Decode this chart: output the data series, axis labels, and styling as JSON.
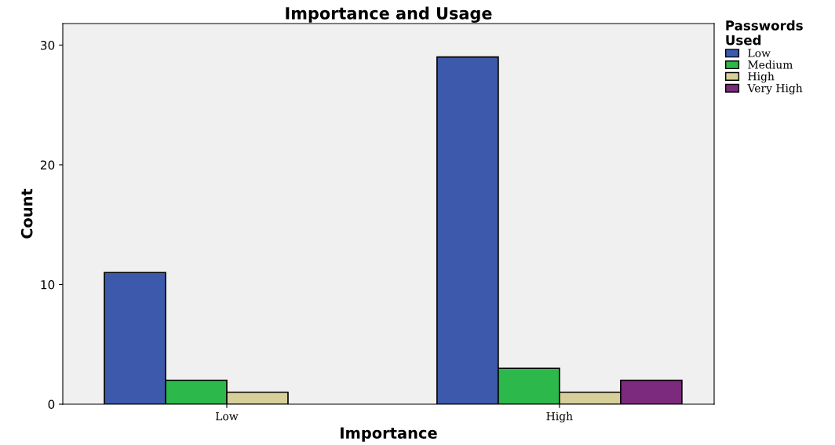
{
  "chart_data": {
    "type": "bar",
    "title": "Importance and Usage",
    "xlabel": "Importance",
    "ylabel": "Count",
    "legend_title": "Passwords\nUsed",
    "categories": [
      "Low",
      "High"
    ],
    "series": [
      {
        "name": "Low",
        "color": "#3d59ab",
        "values": [
          11,
          29
        ]
      },
      {
        "name": "Medium",
        "color": "#2db84b",
        "values": [
          2,
          3
        ]
      },
      {
        "name": "High",
        "color": "#d6cf99",
        "values": [
          1,
          1
        ]
      },
      {
        "name": "Very High",
        "color": "#7b2a7d",
        "values": [
          null,
          2
        ]
      }
    ],
    "ylim": [
      0,
      31.8
    ],
    "yticks": [
      0,
      10,
      20,
      30
    ],
    "grid": false,
    "legend": "top right"
  }
}
